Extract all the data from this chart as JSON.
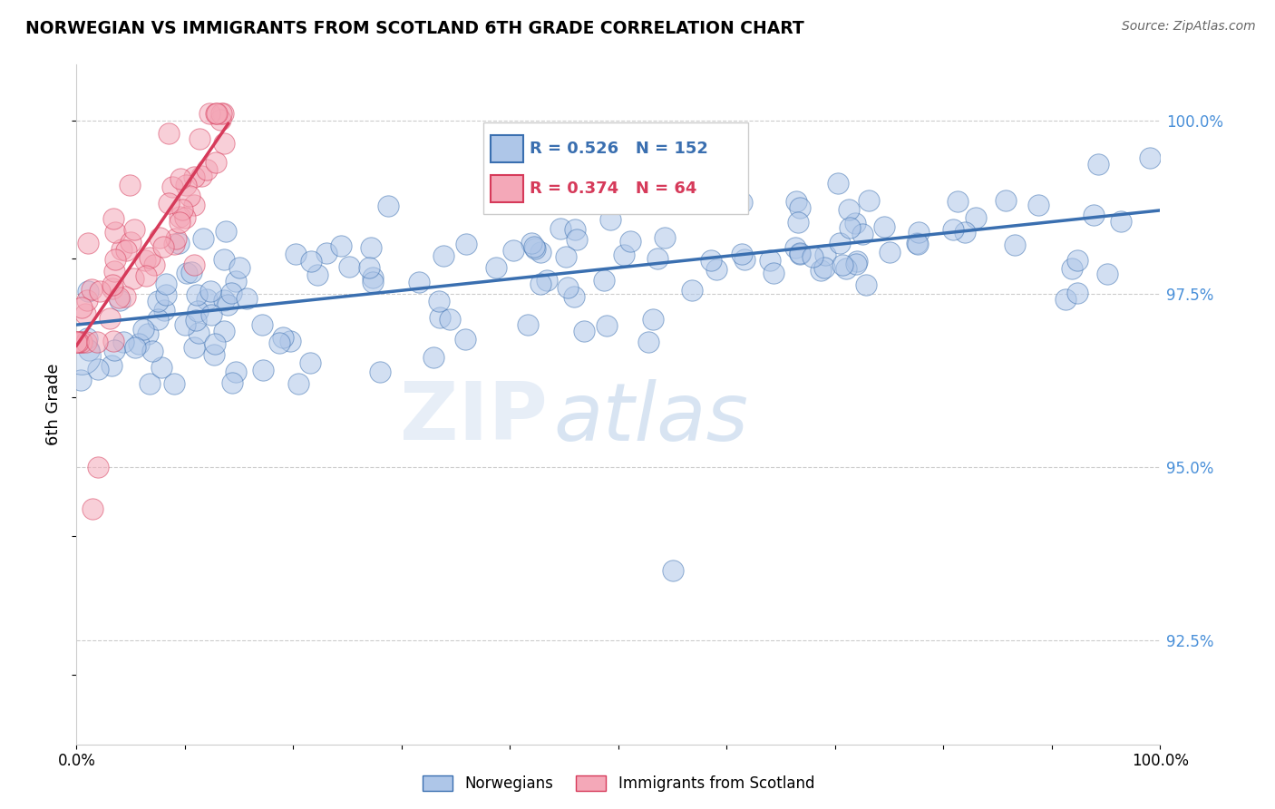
{
  "title": "NORWEGIAN VS IMMIGRANTS FROM SCOTLAND 6TH GRADE CORRELATION CHART",
  "source_text": "Source: ZipAtlas.com",
  "ylabel": "6th Grade",
  "ylabel_right_labels": [
    "100.0%",
    "97.5%",
    "95.0%",
    "92.5%"
  ],
  "ylabel_right_values": [
    1.0,
    0.975,
    0.95,
    0.925
  ],
  "xmin": 0.0,
  "xmax": 1.0,
  "ymin": 0.91,
  "ymax": 1.008,
  "blue_R": 0.526,
  "blue_N": 152,
  "pink_R": 0.374,
  "pink_N": 64,
  "blue_color": "#aec6e8",
  "blue_line_color": "#3a6fb0",
  "pink_color": "#f4a8b8",
  "pink_line_color": "#d63a5a",
  "legend_label_blue": "Norwegians",
  "legend_label_pink": "Immigrants from Scotland",
  "watermark_zip": "ZIP",
  "watermark_atlas": "atlas",
  "grid_color": "#cccccc",
  "blue_trendline_x0": 0.0,
  "blue_trendline_y0": 0.9705,
  "blue_trendline_x1": 1.0,
  "blue_trendline_y1": 0.987,
  "pink_trendline_x0": 0.0,
  "pink_trendline_y0": 0.9675,
  "pink_trendline_x1": 0.14,
  "pink_trendline_y1": 0.9995
}
